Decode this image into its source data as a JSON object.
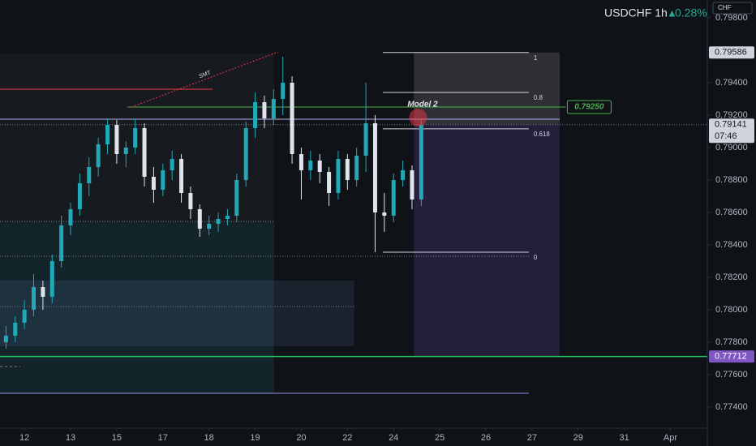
{
  "chart_data": {
    "type": "candlestick",
    "title": "USDCHF 1h",
    "change": "0.28%",
    "currency": "CHF",
    "up_color": "#22a9b8",
    "down_color": "#e0e3eb",
    "xlim": [
      -0.53,
      14.8
    ],
    "ylim": [
      0.77285,
      0.7991
    ],
    "xticks": [
      {
        "value": 0,
        "label": "12"
      },
      {
        "value": 1,
        "label": "13"
      },
      {
        "value": 2,
        "label": "15"
      },
      {
        "value": 3,
        "label": "17"
      },
      {
        "value": 4,
        "label": "18"
      },
      {
        "value": 5,
        "label": "19"
      },
      {
        "value": 6,
        "label": "20"
      },
      {
        "value": 7,
        "label": "22"
      },
      {
        "value": 8,
        "label": "24"
      },
      {
        "value": 9,
        "label": "25"
      },
      {
        "value": 10,
        "label": "26"
      },
      {
        "value": 11,
        "label": "27"
      },
      {
        "value": 12,
        "label": "29"
      },
      {
        "value": 13,
        "label": "31"
      },
      {
        "value": 14,
        "label": "Apr"
      }
    ],
    "yticks": [
      {
        "value": 0.798,
        "label": "0.79800"
      },
      {
        "value": 0.796,
        "label": "0.79600"
      },
      {
        "value": 0.794,
        "label": "0.79400"
      },
      {
        "value": 0.792,
        "label": "0.79200"
      },
      {
        "value": 0.79,
        "label": "0.79000"
      },
      {
        "value": 0.788,
        "label": "0.78800"
      },
      {
        "value": 0.786,
        "label": "0.78600"
      },
      {
        "value": 0.784,
        "label": "0.78400"
      },
      {
        "value": 0.782,
        "label": "0.78200"
      },
      {
        "value": 0.78,
        "label": "0.78000"
      },
      {
        "value": 0.778,
        "label": "0.77800"
      },
      {
        "value": 0.776,
        "label": "0.77600"
      },
      {
        "value": 0.774,
        "label": "0.77400"
      }
    ],
    "x": [
      -0.4,
      -0.2,
      0,
      0.2,
      0.4,
      0.6,
      0.8,
      1,
      1.2,
      1.4,
      1.6,
      1.8,
      2,
      2.2,
      2.4,
      2.6,
      2.8,
      3,
      3.2,
      3.4,
      3.6,
      3.8,
      4,
      4.2,
      4.4,
      4.6,
      4.8,
      5,
      5.2,
      5.4,
      5.6,
      5.8,
      6,
      6.2,
      6.4,
      6.6,
      6.8,
      7,
      7.2,
      7.4,
      7.6,
      7.8,
      8,
      8.2,
      8.4,
      8.6
    ],
    "candles": [
      [
        0.778,
        0.779,
        0.7776,
        0.7784
      ],
      [
        0.7784,
        0.7796,
        0.778,
        0.7792
      ],
      [
        0.7792,
        0.7806,
        0.7788,
        0.78
      ],
      [
        0.78,
        0.7822,
        0.7796,
        0.7814
      ],
      [
        0.7814,
        0.7818,
        0.78,
        0.7808
      ],
      [
        0.7808,
        0.7834,
        0.7804,
        0.783
      ],
      [
        0.783,
        0.7858,
        0.7826,
        0.7852
      ],
      [
        0.7852,
        0.7866,
        0.7846,
        0.7862
      ],
      [
        0.7862,
        0.7884,
        0.7858,
        0.7878
      ],
      [
        0.7878,
        0.7894,
        0.787,
        0.7888
      ],
      [
        0.7888,
        0.7906,
        0.7882,
        0.7902
      ],
      [
        0.7902,
        0.7918,
        0.7896,
        0.7914
      ],
      [
        0.7914,
        0.7917,
        0.789,
        0.7896
      ],
      [
        0.7896,
        0.7904,
        0.7888,
        0.79
      ],
      [
        0.79,
        0.7918,
        0.7896,
        0.7912
      ],
      [
        0.7912,
        0.7915,
        0.7876,
        0.7882
      ],
      [
        0.7882,
        0.7888,
        0.7866,
        0.7874
      ],
      [
        0.7874,
        0.789,
        0.787,
        0.7886
      ],
      [
        0.7886,
        0.7898,
        0.788,
        0.7893
      ],
      [
        0.7893,
        0.7896,
        0.7866,
        0.7872
      ],
      [
        0.7872,
        0.7876,
        0.7856,
        0.7862
      ],
      [
        0.7862,
        0.7865,
        0.7845,
        0.785
      ],
      [
        0.785,
        0.7858,
        0.7846,
        0.7853
      ],
      [
        0.7853,
        0.786,
        0.7848,
        0.7856
      ],
      [
        0.7856,
        0.7862,
        0.7852,
        0.7858
      ],
      [
        0.7858,
        0.7884,
        0.7854,
        0.788
      ],
      [
        0.788,
        0.7916,
        0.7876,
        0.7912
      ],
      [
        0.7912,
        0.7934,
        0.7906,
        0.7928
      ],
      [
        0.7928,
        0.7932,
        0.7912,
        0.7918
      ],
      [
        0.7918,
        0.7936,
        0.7914,
        0.793
      ],
      [
        0.793,
        0.7956,
        0.792,
        0.794
      ],
      [
        0.794,
        0.7944,
        0.789,
        0.7896
      ],
      [
        0.7896,
        0.79,
        0.7868,
        0.7886
      ],
      [
        0.7886,
        0.7898,
        0.788,
        0.7892
      ],
      [
        0.7892,
        0.7896,
        0.7878,
        0.7885
      ],
      [
        0.7885,
        0.7888,
        0.7864,
        0.7872
      ],
      [
        0.7872,
        0.7898,
        0.7868,
        0.7893
      ],
      [
        0.7893,
        0.7896,
        0.7874,
        0.788
      ],
      [
        0.788,
        0.79,
        0.7876,
        0.7895
      ],
      [
        0.7895,
        0.794,
        0.7885,
        0.7915
      ],
      [
        0.7915,
        0.792,
        0.78355,
        0.786
      ],
      [
        0.786,
        0.7872,
        0.7848,
        0.7858
      ],
      [
        0.7858,
        0.7884,
        0.7854,
        0.788
      ],
      [
        0.788,
        0.7892,
        0.7876,
        0.7886
      ],
      [
        0.7886,
        0.7889,
        0.7862,
        0.7868
      ],
      [
        0.7868,
        0.7918,
        0.7864,
        0.79141
      ]
    ],
    "countdown": "07:46",
    "zones": [
      {
        "from": -0.53,
        "to": 5.41,
        "top": 0.7958,
        "bottom": 0.77485,
        "color": "rgba(255,255,255,0.035)"
      },
      {
        "from": -0.53,
        "to": 5.41,
        "top": 0.78545,
        "bottom": 0.77485,
        "color": "rgba(0,140,170,0.09)"
      },
      {
        "from": -0.53,
        "to": 7.15,
        "top": 0.7818,
        "bottom": 0.77775,
        "color": "rgba(90,120,170,0.16)"
      }
    ],
    "lines": [
      {
        "price": 0.7936,
        "from": -0.53,
        "to": 4.08,
        "color": "#f23645",
        "dash": "none"
      },
      {
        "price": 0.79175,
        "from": -0.53,
        "to": 11.6,
        "color": "#b2b5f0",
        "dash": "none"
      },
      {
        "price": 0.77485,
        "from": -0.53,
        "to": 10.93,
        "color": "#8f93e0",
        "dash": "none"
      },
      {
        "price": 0.7802,
        "from": -0.53,
        "to": 7.15,
        "color": "#787b86",
        "dash": "1 2"
      },
      {
        "price": 0.7833,
        "from": -0.53,
        "to": 10.93,
        "color": "#787b86",
        "dash": "1 2"
      },
      {
        "price": 0.78545,
        "from": -0.53,
        "to": 5.41,
        "color": "#787b86",
        "dash": "1 2"
      },
      {
        "price": 0.7765,
        "from": -0.53,
        "to": -0.09,
        "color": "#787b86",
        "dash": "3 3"
      }
    ],
    "alert": {
      "value": 0.7925,
      "label": "0.79250",
      "from": 2.23,
      "to": 11.73,
      "color": "#4caf50"
    },
    "stop": {
      "value": 0.77712,
      "color": "#22c55e",
      "tag_color": "#7e57c2"
    },
    "position": {
      "from": 8.44,
      "to": 11.6
    },
    "fib": {
      "low": 0.78355,
      "high": 0.79586,
      "from": 7.77,
      "to": 10.93,
      "levels": [
        1,
        0.8,
        0.618,
        0
      ]
    },
    "smt": {
      "label": "SMT",
      "from": [
        2.32,
        0.7925
      ],
      "to": [
        5.5,
        0.7959
      ]
    },
    "marker": {
      "label": "Model 2",
      "x": 8.53,
      "price": 0.79185
    }
  }
}
